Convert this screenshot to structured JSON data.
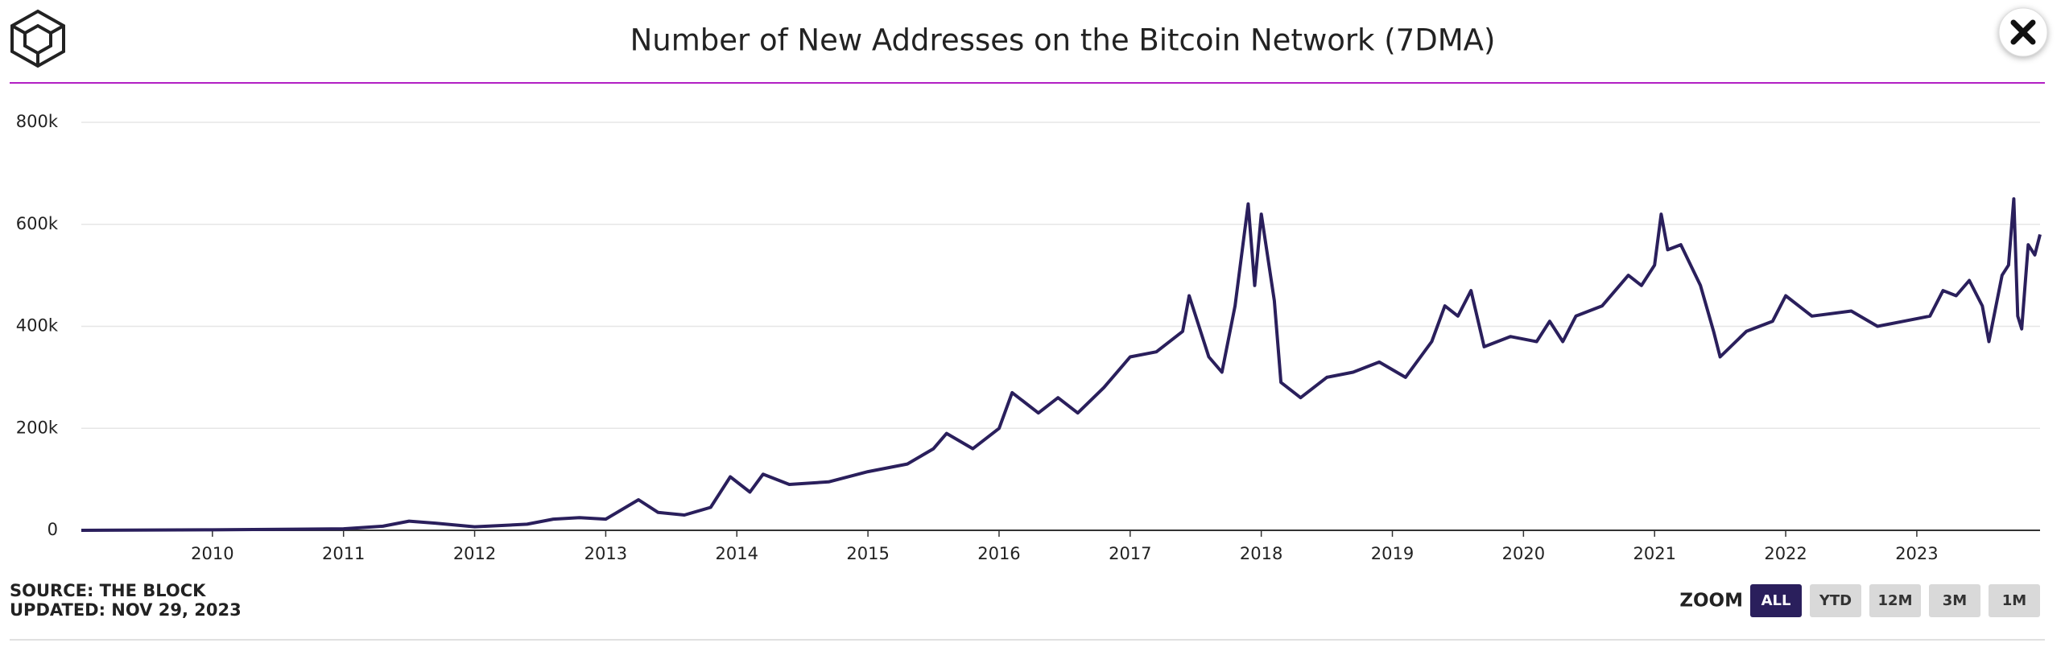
{
  "chart_data": {
    "type": "line",
    "title": "Number of New Addresses on the Bitcoin Network (7DMA)",
    "x": [
      2009.0,
      2010.0,
      2011.0,
      2011.3,
      2011.5,
      2011.7,
      2012.0,
      2012.4,
      2012.6,
      2012.8,
      2013.0,
      2013.25,
      2013.4,
      2013.6,
      2013.8,
      2013.95,
      2014.1,
      2014.2,
      2014.4,
      2014.7,
      2015.0,
      2015.3,
      2015.5,
      2015.6,
      2015.8,
      2016.0,
      2016.1,
      2016.3,
      2016.45,
      2016.6,
      2016.8,
      2017.0,
      2017.2,
      2017.4,
      2017.45,
      2017.6,
      2017.7,
      2017.8,
      2017.9,
      2017.95,
      2018.0,
      2018.1,
      2018.15,
      2018.3,
      2018.5,
      2018.7,
      2018.9,
      2019.1,
      2019.3,
      2019.4,
      2019.5,
      2019.6,
      2019.7,
      2019.9,
      2020.1,
      2020.2,
      2020.3,
      2020.4,
      2020.6,
      2020.8,
      2020.9,
      2021.0,
      2021.05,
      2021.1,
      2021.2,
      2021.35,
      2021.45,
      2021.5,
      2021.7,
      2021.9,
      2022.0,
      2022.2,
      2022.5,
      2022.7,
      2022.9,
      2023.1,
      2023.2,
      2023.3,
      2023.4,
      2023.5,
      2023.55,
      2023.65,
      2023.7,
      2023.74,
      2023.77,
      2023.8,
      2023.85,
      2023.9,
      2023.94
    ],
    "series": [
      {
        "name": "New Addresses",
        "color": "#2a1f5c",
        "values": [
          0,
          1000,
          3000,
          8000,
          18000,
          14000,
          7000,
          12000,
          22000,
          25000,
          22000,
          60000,
          35000,
          30000,
          45000,
          105000,
          75000,
          110000,
          90000,
          95000,
          115000,
          130000,
          160000,
          190000,
          160000,
          200000,
          270000,
          230000,
          260000,
          230000,
          280000,
          340000,
          350000,
          390000,
          460000,
          340000,
          310000,
          440000,
          640000,
          480000,
          620000,
          450000,
          290000,
          260000,
          300000,
          310000,
          330000,
          300000,
          370000,
          440000,
          420000,
          470000,
          360000,
          380000,
          370000,
          410000,
          370000,
          420000,
          440000,
          500000,
          480000,
          520000,
          620000,
          550000,
          560000,
          480000,
          390000,
          340000,
          390000,
          410000,
          460000,
          420000,
          430000,
          400000,
          410000,
          420000,
          470000,
          460000,
          490000,
          440000,
          370000,
          500000,
          520000,
          650000,
          420000,
          395000,
          560000,
          540000,
          580000
        ]
      }
    ],
    "xlim": [
      2009.0,
      2023.94
    ],
    "xticks": [
      2010,
      2011,
      2012,
      2013,
      2014,
      2015,
      2016,
      2017,
      2018,
      2019,
      2020,
      2021,
      2022,
      2023
    ],
    "ylim": [
      0,
      800000
    ],
    "yticks": [
      0,
      {
        "value": 200000,
        "label": "200k"
      },
      {
        "value": 400000,
        "label": "400k"
      },
      {
        "value": 600000,
        "label": "600k"
      },
      {
        "value": 800000,
        "label": "800k"
      }
    ],
    "grid": true
  },
  "footer": {
    "source": "SOURCE: THE BLOCK",
    "updated": "UPDATED: NOV 29, 2023"
  },
  "zoom": {
    "label": "ZOOM",
    "buttons": [
      "ALL",
      "YTD",
      "12M",
      "3M",
      "1M"
    ],
    "active": "ALL"
  }
}
